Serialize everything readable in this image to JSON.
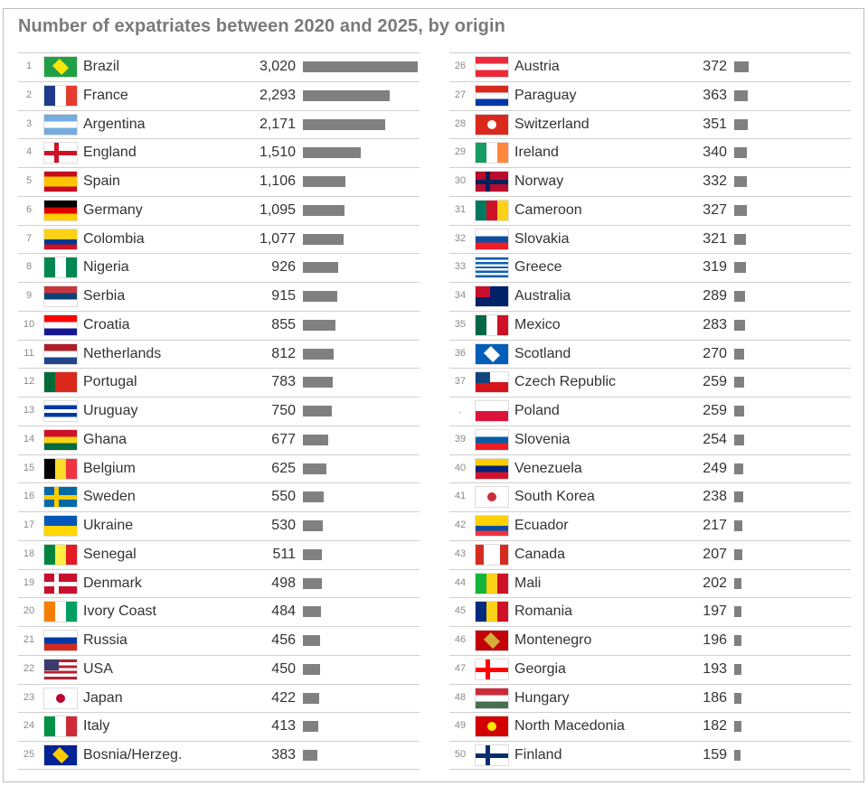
{
  "chart_data": {
    "type": "bar",
    "title": "Number of expatriates between 2020 and 2025, by origin",
    "xlabel": "",
    "ylabel": "",
    "xlim": [
      0,
      3020
    ],
    "rows": [
      {
        "rank": "1",
        "country": "Brazil",
        "value": 3020,
        "label": "3,020",
        "flag": {
          "d": "h",
          "c": [
            "#229e45"
          ],
          "mark": "#f8e509"
        }
      },
      {
        "rank": "2",
        "country": "France",
        "value": 2293,
        "label": "2,293",
        "flag": {
          "d": "v",
          "c": [
            "#1e3a8a",
            "#ffffff",
            "#e63b2e"
          ]
        }
      },
      {
        "rank": "3",
        "country": "Argentina",
        "value": 2171,
        "label": "2,171",
        "flag": {
          "d": "h",
          "c": [
            "#74acdf",
            "#ffffff",
            "#74acdf"
          ]
        }
      },
      {
        "rank": "4",
        "country": "England",
        "value": 1510,
        "label": "1,510",
        "flag": {
          "d": "h",
          "c": [
            "#ffffff"
          ],
          "cross": "#ce1124"
        }
      },
      {
        "rank": "5",
        "country": "Spain",
        "value": 1106,
        "label": "1,106",
        "flag": {
          "d": "h",
          "c": [
            "#c60b1e",
            "#ffc400",
            "#ffc400",
            "#c60b1e"
          ]
        }
      },
      {
        "rank": "6",
        "country": "Germany",
        "value": 1095,
        "label": "1,095",
        "flag": {
          "d": "h",
          "c": [
            "#000000",
            "#dd0000",
            "#ffce00"
          ]
        }
      },
      {
        "rank": "7",
        "country": "Colombia",
        "value": 1077,
        "label": "1,077",
        "flag": {
          "d": "h",
          "c": [
            "#fcd116",
            "#fcd116",
            "#003893",
            "#ce1126"
          ]
        }
      },
      {
        "rank": "8",
        "country": "Nigeria",
        "value": 926,
        "label": "926",
        "flag": {
          "d": "v",
          "c": [
            "#008751",
            "#ffffff",
            "#008751"
          ]
        }
      },
      {
        "rank": "9",
        "country": "Serbia",
        "value": 915,
        "label": "915",
        "flag": {
          "d": "h",
          "c": [
            "#c6363c",
            "#0c4076",
            "#ffffff"
          ]
        }
      },
      {
        "rank": "10",
        "country": "Croatia",
        "value": 855,
        "label": "855",
        "flag": {
          "d": "h",
          "c": [
            "#ff0000",
            "#ffffff",
            "#171796"
          ]
        }
      },
      {
        "rank": "11",
        "country": "Netherlands",
        "value": 812,
        "label": "812",
        "flag": {
          "d": "h",
          "c": [
            "#ae1c28",
            "#ffffff",
            "#21468b"
          ]
        }
      },
      {
        "rank": "12",
        "country": "Portugal",
        "value": 783,
        "label": "783",
        "flag": {
          "d": "v",
          "c": [
            "#046a38",
            "#da291c",
            "#da291c"
          ]
        }
      },
      {
        "rank": "13",
        "country": "Uruguay",
        "value": 750,
        "label": "750",
        "flag": {
          "d": "h",
          "c": [
            "#ffffff",
            "#0038a8",
            "#ffffff",
            "#0038a8",
            "#ffffff"
          ]
        }
      },
      {
        "rank": "14",
        "country": "Ghana",
        "value": 677,
        "label": "677",
        "flag": {
          "d": "h",
          "c": [
            "#ce1126",
            "#fcd116",
            "#006b3f"
          ]
        }
      },
      {
        "rank": "15",
        "country": "Belgium",
        "value": 625,
        "label": "625",
        "flag": {
          "d": "v",
          "c": [
            "#000000",
            "#fdda24",
            "#ef3340"
          ]
        }
      },
      {
        "rank": "16",
        "country": "Sweden",
        "value": 550,
        "label": "550",
        "flag": {
          "d": "h",
          "c": [
            "#006aa7"
          ],
          "cross": "#fecc00"
        }
      },
      {
        "rank": "17",
        "country": "Ukraine",
        "value": 530,
        "label": "530",
        "flag": {
          "d": "h",
          "c": [
            "#0057b7",
            "#ffd700"
          ]
        }
      },
      {
        "rank": "18",
        "country": "Senegal",
        "value": 511,
        "label": "511",
        "flag": {
          "d": "v",
          "c": [
            "#00853f",
            "#fdef42",
            "#e31b23"
          ]
        }
      },
      {
        "rank": "19",
        "country": "Denmark",
        "value": 498,
        "label": "498",
        "flag": {
          "d": "h",
          "c": [
            "#c8102e"
          ],
          "cross": "#ffffff"
        }
      },
      {
        "rank": "20",
        "country": "Ivory Coast",
        "value": 484,
        "label": "484",
        "flag": {
          "d": "v",
          "c": [
            "#f77f00",
            "#ffffff",
            "#009e60"
          ]
        }
      },
      {
        "rank": "21",
        "country": "Russia",
        "value": 456,
        "label": "456",
        "flag": {
          "d": "h",
          "c": [
            "#ffffff",
            "#0039a6",
            "#d52b1e"
          ]
        }
      },
      {
        "rank": "22",
        "country": "USA",
        "value": 450,
        "label": "450",
        "flag": {
          "d": "h",
          "c": [
            "#b22234",
            "#ffffff",
            "#b22234",
            "#ffffff",
            "#b22234",
            "#ffffff",
            "#b22234"
          ],
          "canton": "#3c3b6e"
        }
      },
      {
        "rank": "23",
        "country": "Japan",
        "value": 422,
        "label": "422",
        "flag": {
          "d": "h",
          "c": [
            "#ffffff"
          ],
          "disc": "#bc002d"
        }
      },
      {
        "rank": "24",
        "country": "Italy",
        "value": 413,
        "label": "413",
        "flag": {
          "d": "v",
          "c": [
            "#009246",
            "#ffffff",
            "#ce2b37"
          ]
        }
      },
      {
        "rank": "25",
        "country": "Bosnia/Herzeg.",
        "value": 383,
        "label": "383",
        "flag": {
          "d": "h",
          "c": [
            "#002395"
          ],
          "mark": "#fecb00"
        }
      },
      {
        "rank": "26",
        "country": "Austria",
        "value": 372,
        "label": "372",
        "flag": {
          "d": "h",
          "c": [
            "#ed2939",
            "#ffffff",
            "#ed2939"
          ]
        }
      },
      {
        "rank": "27",
        "country": "Paraguay",
        "value": 363,
        "label": "363",
        "flag": {
          "d": "h",
          "c": [
            "#d52b1e",
            "#ffffff",
            "#0038a8"
          ]
        }
      },
      {
        "rank": "28",
        "country": "Switzerland",
        "value": 351,
        "label": "351",
        "flag": {
          "d": "h",
          "c": [
            "#da291c"
          ],
          "disc": "#ffffff"
        }
      },
      {
        "rank": "29",
        "country": "Ireland",
        "value": 340,
        "label": "340",
        "flag": {
          "d": "v",
          "c": [
            "#169b62",
            "#ffffff",
            "#ff883e"
          ]
        }
      },
      {
        "rank": "30",
        "country": "Norway",
        "value": 332,
        "label": "332",
        "flag": {
          "d": "h",
          "c": [
            "#ba0c2f"
          ],
          "cross": "#00205b"
        }
      },
      {
        "rank": "31",
        "country": "Cameroon",
        "value": 327,
        "label": "327",
        "flag": {
          "d": "v",
          "c": [
            "#007a5e",
            "#ce1126",
            "#fcd116"
          ]
        }
      },
      {
        "rank": "32",
        "country": "Slovakia",
        "value": 321,
        "label": "321",
        "flag": {
          "d": "h",
          "c": [
            "#ffffff",
            "#0b4ea2",
            "#ee1c25"
          ]
        }
      },
      {
        "rank": "33",
        "country": "Greece",
        "value": 319,
        "label": "319",
        "flag": {
          "d": "h",
          "c": [
            "#0d5eaf",
            "#ffffff",
            "#0d5eaf",
            "#ffffff",
            "#0d5eaf",
            "#ffffff",
            "#0d5eaf",
            "#ffffff",
            "#0d5eaf"
          ]
        }
      },
      {
        "rank": "34",
        "country": "Australia",
        "value": 289,
        "label": "289",
        "flag": {
          "d": "h",
          "c": [
            "#012169"
          ],
          "canton": "#c8102e"
        }
      },
      {
        "rank": "35",
        "country": "Mexico",
        "value": 283,
        "label": "283",
        "flag": {
          "d": "v",
          "c": [
            "#006847",
            "#ffffff",
            "#ce1126"
          ]
        }
      },
      {
        "rank": "36",
        "country": "Scotland",
        "value": 270,
        "label": "270",
        "flag": {
          "d": "h",
          "c": [
            "#005eb8"
          ],
          "mark": "#ffffff"
        }
      },
      {
        "rank": "37",
        "country": "Czech Republic",
        "value": 259,
        "label": "259",
        "flag": {
          "d": "h",
          "c": [
            "#ffffff",
            "#d7141a"
          ],
          "canton": "#11457e"
        }
      },
      {
        "rank": ".",
        "country": "Poland",
        "value": 259,
        "label": "259",
        "flag": {
          "d": "h",
          "c": [
            "#ffffff",
            "#dc143c"
          ]
        }
      },
      {
        "rank": "39",
        "country": "Slovenia",
        "value": 254,
        "label": "254",
        "flag": {
          "d": "h",
          "c": [
            "#ffffff",
            "#005da4",
            "#ed1c24"
          ]
        }
      },
      {
        "rank": "40",
        "country": "Venezuela",
        "value": 249,
        "label": "249",
        "flag": {
          "d": "h",
          "c": [
            "#ffcc00",
            "#00247d",
            "#cf142b"
          ]
        }
      },
      {
        "rank": "41",
        "country": "South Korea",
        "value": 238,
        "label": "238",
        "flag": {
          "d": "h",
          "c": [
            "#ffffff"
          ],
          "disc": "#cd2e3a"
        }
      },
      {
        "rank": "42",
        "country": "Ecuador",
        "value": 217,
        "label": "217",
        "flag": {
          "d": "h",
          "c": [
            "#ffd100",
            "#ffd100",
            "#034ea2",
            "#ef3340"
          ]
        }
      },
      {
        "rank": "43",
        "country": "Canada",
        "value": 207,
        "label": "207",
        "flag": {
          "d": "v",
          "c": [
            "#d52b1e",
            "#ffffff",
            "#ffffff",
            "#d52b1e"
          ]
        }
      },
      {
        "rank": "44",
        "country": "Mali",
        "value": 202,
        "label": "202",
        "flag": {
          "d": "v",
          "c": [
            "#14b53a",
            "#fcd116",
            "#ce1126"
          ]
        }
      },
      {
        "rank": "45",
        "country": "Romania",
        "value": 197,
        "label": "197",
        "flag": {
          "d": "v",
          "c": [
            "#002b7f",
            "#fcd116",
            "#ce1126"
          ]
        }
      },
      {
        "rank": "46",
        "country": "Montenegro",
        "value": 196,
        "label": "196",
        "flag": {
          "d": "h",
          "c": [
            "#c40308"
          ],
          "mark": "#d3ae3b"
        }
      },
      {
        "rank": "47",
        "country": "Georgia",
        "value": 193,
        "label": "193",
        "flag": {
          "d": "h",
          "c": [
            "#ffffff"
          ],
          "cross": "#ff0000"
        }
      },
      {
        "rank": "48",
        "country": "Hungary",
        "value": 186,
        "label": "186",
        "flag": {
          "d": "h",
          "c": [
            "#ce2939",
            "#ffffff",
            "#477050"
          ]
        }
      },
      {
        "rank": "49",
        "country": "North Macedonia",
        "value": 182,
        "label": "182",
        "flag": {
          "d": "h",
          "c": [
            "#d20000"
          ],
          "disc": "#ffe600"
        }
      },
      {
        "rank": "50",
        "country": "Finland",
        "value": 159,
        "label": "159",
        "flag": {
          "d": "h",
          "c": [
            "#ffffff"
          ],
          "cross": "#002f6c"
        }
      }
    ],
    "colors": {
      "bar": "#808080",
      "title": "#7a7a7a"
    }
  }
}
